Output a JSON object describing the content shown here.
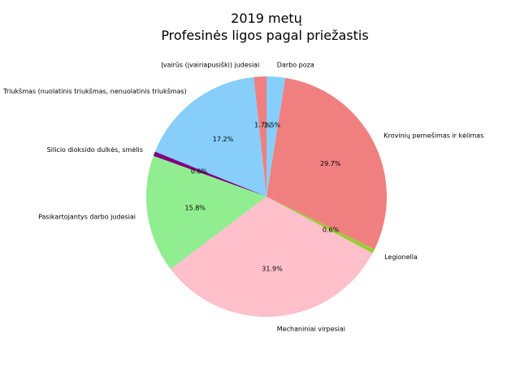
{
  "chart_data": {
    "type": "pie",
    "title_line1": "2019 metų",
    "title_line2": "Profesinės ligos pagal priežastis",
    "slices": [
      {
        "label": "Įvairūs (įvairiapusiški) judesiai",
        "value": 1.7,
        "pct_text": "1.7%",
        "color": "#f08080"
      },
      {
        "label": "Triukšmas (nuolatinis triukšmas, nenuolatinis triukšmas)",
        "value": 17.2,
        "pct_text": "17.2%",
        "color": "#87cefa"
      },
      {
        "label": "Silicio dioksido dulkės, smėlis",
        "value": 0.6,
        "pct_text": "0.6%",
        "color": "#800080"
      },
      {
        "label": "Pasikartojantys darbo judesiai",
        "value": 15.8,
        "pct_text": "15.8%",
        "color": "#90ee90"
      },
      {
        "label": "Mechaniniai virpesiai",
        "value": 31.9,
        "pct_text": "31.9%",
        "color": "#ffc0cb"
      },
      {
        "label": "Legionella",
        "value": 0.6,
        "pct_text": "0.6%",
        "color": "#9acd32"
      },
      {
        "label": "Krovinių pernešimas ir kėlimas",
        "value": 29.7,
        "pct_text": "29.7%",
        "color": "#f08080"
      },
      {
        "label": "Darbo poza",
        "value": 2.5,
        "pct_text": "2.5%",
        "color": "#87cefa"
      }
    ]
  }
}
